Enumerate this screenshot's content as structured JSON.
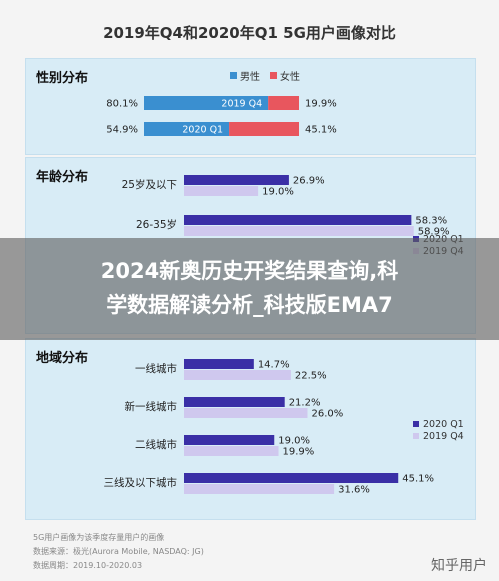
{
  "title": "2019年Q4和2020年Q1 5G用户画像对比",
  "colors": {
    "male": "#3a8fd0",
    "female": "#e8565e",
    "q1": "#3a2fa6",
    "q4": "#cfc8ee",
    "panel": "#d8ecf6"
  },
  "banner": {
    "line1": "2024新奥历史开奖结果查询,科",
    "line2": "学数据解读分析_科技版EMA7"
  },
  "footer": {
    "line1": "5G用户画像为该季度存量用户的画像",
    "line2": "数据来源：极光(Aurora Mobile, NASDAQ: JG)",
    "line3": "数据周期：2019.10-2020.03"
  },
  "watermark": "知乎用户",
  "chart_data": [
    {
      "type": "bar",
      "title": "性别分布",
      "orientation": "horizontal-stacked",
      "categories": [
        "2019 Q4",
        "2020 Q1"
      ],
      "series": [
        {
          "name": "男性",
          "values": [
            80.1,
            54.9
          ],
          "labels": [
            "80.1%",
            "54.9%"
          ]
        },
        {
          "name": "女性",
          "values": [
            19.9,
            45.1
          ],
          "labels": [
            "19.9%",
            "45.1%"
          ]
        }
      ]
    },
    {
      "type": "bar",
      "title": "年龄分布",
      "orientation": "horizontal",
      "categories": [
        "25岁及以下",
        "26-35岁"
      ],
      "series": [
        {
          "name": "2020 Q1",
          "values": [
            26.9,
            58.3
          ],
          "labels": [
            "26.9%",
            "58.3%"
          ]
        },
        {
          "name": "2019 Q4",
          "values": [
            19.0,
            58.9
          ],
          "labels": [
            "19.0%",
            "58.9%"
          ]
        }
      ],
      "legend": "right"
    },
    {
      "type": "bar",
      "title": "地域分布",
      "orientation": "horizontal",
      "categories": [
        "一线城市",
        "新一线城市",
        "二线城市",
        "三线及以下城市"
      ],
      "series": [
        {
          "name": "2020 Q1",
          "values": [
            14.7,
            21.2,
            19.0,
            45.1
          ],
          "labels": [
            "14.7%",
            "21.2%",
            "19.0%",
            "45.1%"
          ]
        },
        {
          "name": "2019 Q4",
          "values": [
            22.5,
            26.0,
            19.9,
            31.6
          ],
          "labels": [
            "22.5%",
            "26.0%",
            "19.9%",
            "31.6%"
          ]
        }
      ],
      "legend": "right"
    }
  ]
}
